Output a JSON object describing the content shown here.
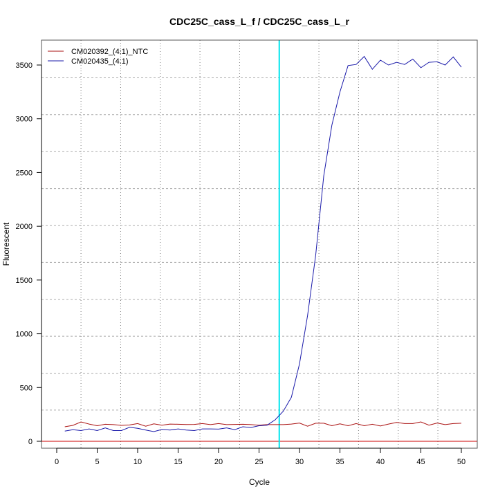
{
  "chart_data": {
    "type": "line",
    "title": "CDC25C_cass_L_f / CDC25C_cass_L_r",
    "xlabel": "Cycle",
    "ylabel": "Fluorescent",
    "xlim": [
      -2,
      52
    ],
    "ylim": [
      -60,
      3730
    ],
    "xticks": [
      0,
      5,
      10,
      15,
      20,
      25,
      30,
      35,
      40,
      45,
      50
    ],
    "yticks": [
      0,
      500,
      1000,
      1500,
      2000,
      2500,
      3000,
      3500
    ],
    "grid": true,
    "grid_x": [
      3.0,
      7.9,
      12.8,
      17.7,
      22.6,
      27.5,
      32.4,
      37.3,
      42.2,
      47.1
    ],
    "grid_y": [
      290,
      633,
      977,
      1320,
      1664,
      2007,
      2351,
      2694,
      3038,
      3381
    ],
    "threshold_cycle": 27.5,
    "threshold_color": "#00e5ee",
    "baseline_value": 0,
    "baseline_color": "#cc0000",
    "legend_position": "top-left",
    "x": [
      1,
      2,
      3,
      4,
      5,
      6,
      7,
      8,
      9,
      10,
      11,
      12,
      13,
      14,
      15,
      16,
      17,
      18,
      19,
      20,
      21,
      22,
      23,
      24,
      25,
      26,
      27,
      28,
      29,
      30,
      31,
      32,
      33,
      34,
      35,
      36,
      37,
      38,
      39,
      40,
      41,
      42,
      43,
      44,
      45,
      46,
      47,
      48,
      49,
      50
    ],
    "series": [
      {
        "name": "CM020392_(4:1)_NTC",
        "color": "#aa1111",
        "values": [
          135,
          148,
          180,
          160,
          145,
          158,
          155,
          148,
          152,
          165,
          140,
          162,
          150,
          160,
          158,
          156,
          157,
          165,
          155,
          165,
          155,
          157,
          158,
          155,
          150,
          155,
          155,
          155,
          160,
          170,
          140,
          168,
          168,
          145,
          162,
          145,
          165,
          145,
          158,
          142,
          160,
          175,
          165,
          165,
          180,
          150,
          170,
          155,
          165,
          168
        ]
      },
      {
        "name": "CM020435_(4:1)",
        "color": "#1a1aaa",
        "values": [
          95,
          108,
          100,
          115,
          100,
          125,
          100,
          100,
          130,
          120,
          105,
          90,
          110,
          105,
          115,
          105,
          100,
          115,
          115,
          113,
          125,
          108,
          135,
          128,
          145,
          150,
          200,
          280,
          410,
          720,
          1170,
          1730,
          2470,
          2940,
          3250,
          3495,
          3505,
          3580,
          3460,
          3545,
          3500,
          3525,
          3505,
          3555,
          3475,
          3525,
          3530,
          3500,
          3575,
          3480
        ]
      }
    ]
  }
}
